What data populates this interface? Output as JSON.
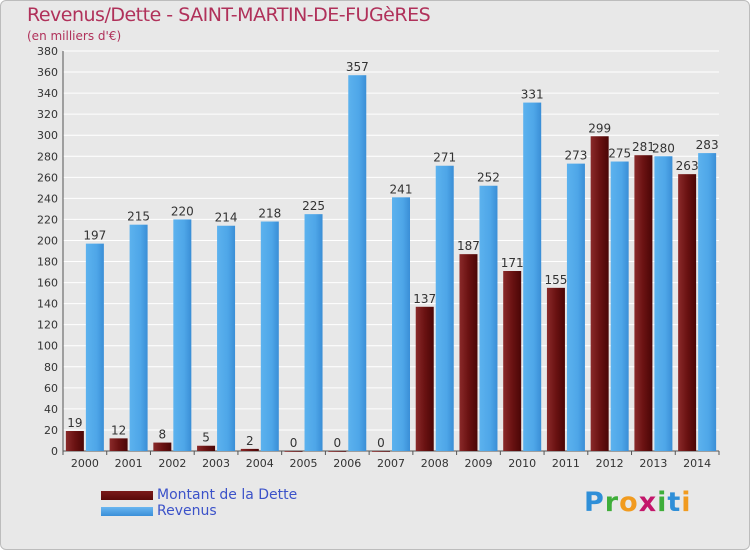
{
  "title": "Revenus/Dette - SAINT-MARTIN-DE-FUGèRES",
  "subtitle": "(en milliers d'€)",
  "logo": {
    "text": "Proxiti"
  },
  "colors": {
    "dette": "#6a1212",
    "revenus": "#4ea6e8",
    "axis_text": "#333333",
    "grid": "#ffffff"
  },
  "chart_data": {
    "type": "bar",
    "categories": [
      "2000",
      "2001",
      "2002",
      "2003",
      "2004",
      "2005",
      "2006",
      "2007",
      "2008",
      "2009",
      "2010",
      "2011",
      "2012",
      "2013",
      "2014"
    ],
    "series": [
      {
        "name": "Montant de la Dette",
        "values": [
          19,
          12,
          8,
          5,
          2,
          0,
          0,
          0,
          137,
          187,
          171,
          155,
          299,
          281,
          263
        ]
      },
      {
        "name": "Revenus",
        "values": [
          197,
          215,
          220,
          214,
          218,
          225,
          357,
          241,
          271,
          252,
          331,
          273,
          275,
          280,
          283
        ]
      }
    ],
    "ylim": [
      0,
      380
    ],
    "yticks": [
      0,
      20,
      40,
      60,
      80,
      100,
      120,
      140,
      160,
      180,
      200,
      220,
      240,
      260,
      280,
      300,
      320,
      340,
      360,
      380
    ],
    "grid": true,
    "legend": "bottom-left"
  }
}
